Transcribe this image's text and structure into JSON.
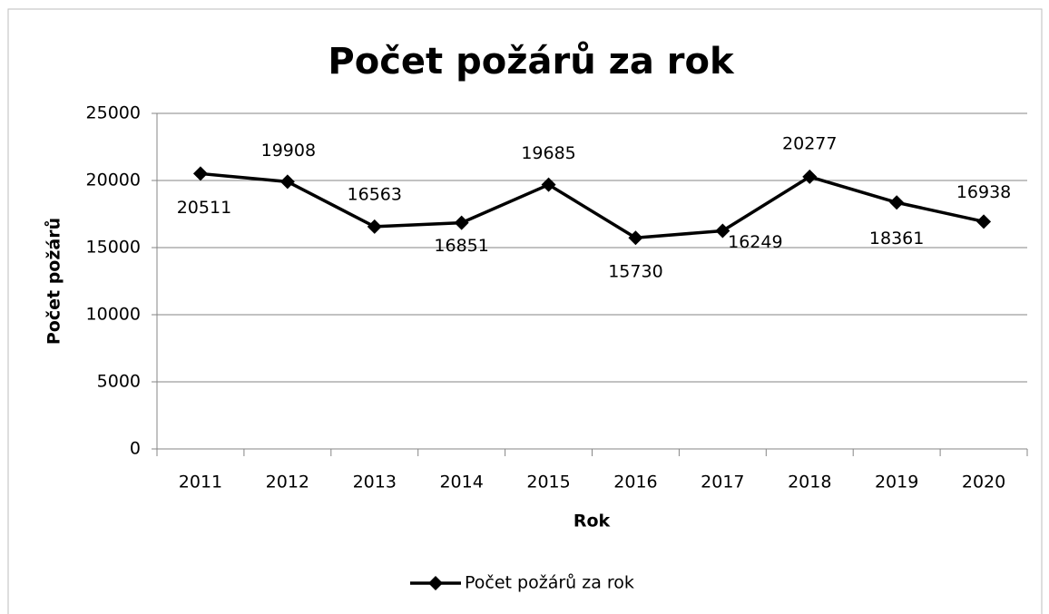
{
  "chart_data": {
    "type": "line",
    "title": "Počet požárů za rok",
    "x_label": "Rok",
    "y_label": "Počet požárů",
    "categories": [
      "2011",
      "2012",
      "2013",
      "2014",
      "2015",
      "2016",
      "2017",
      "2018",
      "2019",
      "2020"
    ],
    "series": [
      {
        "name": "Počet požárů za rok",
        "color": "#000000",
        "values": [
          20511,
          19908,
          16563,
          16851,
          19685,
          15730,
          16249,
          20277,
          18361,
          16938
        ]
      }
    ],
    "ylim": [
      0,
      25000
    ],
    "yticks": [
      0,
      5000,
      10000,
      15000,
      20000,
      25000
    ],
    "grid": true,
    "legend": "bottom"
  }
}
